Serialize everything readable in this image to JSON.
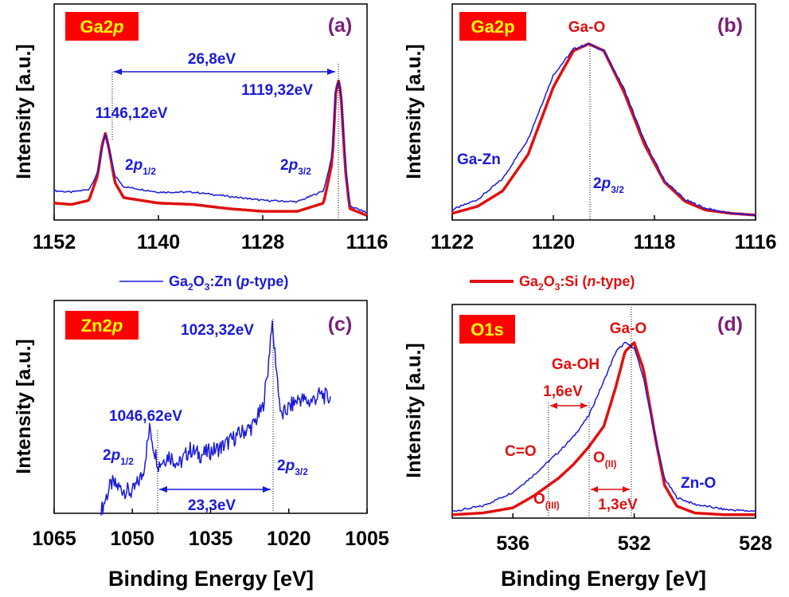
{
  "colors": {
    "p_type": "#1a1adb",
    "n_type": "#e01010",
    "badge_bg": "#ff0000",
    "badge_text": "#ffff00",
    "panel_letter": "#7a1f7a"
  },
  "legend": {
    "p_type": {
      "pre": "Ga",
      "s1": "2",
      "mid": "O",
      "s2": "3",
      "post": ":Zn (",
      "italic": "p",
      "end": "-type)"
    },
    "n_type": {
      "pre": "Ga",
      "s1": "2",
      "mid": "O",
      "s2": "3",
      "post": ":Si (",
      "italic": "n",
      "end": "-type)"
    }
  },
  "chart_data": [
    {
      "panel": "(a)",
      "type": "line",
      "badge": {
        "main": "Ga2",
        "italic": "p"
      },
      "xlabel": "",
      "ylabel": "Intensity [a.u.]",
      "xlim": [
        1152,
        1116
      ],
      "x_ticks": [
        "1152",
        "1140",
        "1128",
        "1116"
      ],
      "annotations": {
        "peak1": "1146,12eV",
        "peak2": "1119,32eV",
        "split": "26,8eV",
        "label1": {
          "main": "2",
          "italic": "p",
          "sub": "1/2"
        },
        "label2": {
          "main": "2",
          "italic": "p",
          "sub": "3/2"
        }
      },
      "series": [
        {
          "name": "Ga2O3:Zn (p-type)",
          "x": [
            1152,
            1150,
            1148,
            1147,
            1146.5,
            1146.1,
            1145.7,
            1145,
            1144,
            1140,
            1136,
            1132,
            1128,
            1124,
            1121,
            1120,
            1119.6,
            1119.3,
            1119,
            1118.5,
            1118,
            1116
          ],
          "y": [
            0.19,
            0.18,
            0.2,
            0.32,
            0.5,
            0.6,
            0.5,
            0.3,
            0.22,
            0.18,
            0.18,
            0.15,
            0.12,
            0.11,
            0.19,
            0.45,
            0.92,
            0.99,
            0.92,
            0.4,
            0.08,
            0.03
          ]
        },
        {
          "name": "Ga2O3:Si (n-type)",
          "x": [
            1152,
            1150,
            1148,
            1147,
            1146.5,
            1146.1,
            1145.7,
            1145,
            1144,
            1140,
            1136,
            1132,
            1128,
            1124,
            1121,
            1120,
            1119.6,
            1119.3,
            1119,
            1118.5,
            1118,
            1116
          ],
          "y": [
            0.1,
            0.09,
            0.12,
            0.3,
            0.52,
            0.61,
            0.5,
            0.25,
            0.14,
            0.1,
            0.09,
            0.06,
            0.04,
            0.04,
            0.1,
            0.4,
            0.9,
            1.0,
            0.9,
            0.35,
            0.06,
            0.01
          ]
        }
      ]
    },
    {
      "panel": "(b)",
      "type": "line",
      "badge": {
        "main": "Ga2p",
        "italic": ""
      },
      "xlabel": "",
      "ylabel": "Intensity [a.u.]",
      "xlim": [
        1122,
        1116
      ],
      "x_ticks": [
        "1122",
        "1120",
        "1118",
        "1116"
      ],
      "annotations": {
        "peak": "Ga-O",
        "shoulder": "Ga-Zn",
        "label": {
          "main": "2",
          "italic": "p",
          "sub": "3/2"
        }
      },
      "series": [
        {
          "name": "Ga2O3:Zn (p-type)",
          "x": [
            1122,
            1121.5,
            1121,
            1120.5,
            1120,
            1119.6,
            1119.3,
            1119,
            1118.6,
            1118.2,
            1117.8,
            1117.4,
            1117,
            1116.5,
            1116
          ],
          "y": [
            0.04,
            0.1,
            0.22,
            0.45,
            0.82,
            0.97,
            1.0,
            0.96,
            0.74,
            0.44,
            0.21,
            0.1,
            0.05,
            0.02,
            0.01
          ]
        },
        {
          "name": "Ga2O3:Si (n-type)",
          "x": [
            1122,
            1121.5,
            1121,
            1120.5,
            1120,
            1119.6,
            1119.3,
            1119,
            1118.6,
            1118.2,
            1117.8,
            1117.4,
            1117,
            1116.5,
            1116
          ],
          "y": [
            0.02,
            0.06,
            0.15,
            0.36,
            0.75,
            0.96,
            1.0,
            0.96,
            0.72,
            0.42,
            0.2,
            0.09,
            0.04,
            0.02,
            0.01
          ]
        }
      ]
    },
    {
      "panel": "(c)",
      "type": "line",
      "badge": {
        "main": "Zn2",
        "italic": "p"
      },
      "xlabel": "Binding Energy [eV]",
      "ylabel": "Intensity [a.u.]",
      "xlim": [
        1065,
        1005
      ],
      "x_ticks": [
        "1065",
        "1050",
        "1035",
        "1020",
        "1005"
      ],
      "annotations": {
        "peak1": "1046,62eV",
        "peak2": "1023,32eV",
        "split": "23,3eV",
        "label1": {
          "main": "2",
          "italic": "p",
          "sub": "1/2"
        },
        "label2": {
          "main": "2",
          "italic": "p",
          "sub": "3/2"
        }
      },
      "series": [
        {
          "name": "Ga2O3:Zn (p-type)",
          "x": [
            1056,
            1055,
            1054,
            1052,
            1050,
            1048,
            1047,
            1046.6,
            1046,
            1045,
            1043,
            1041,
            1039,
            1037,
            1035,
            1033,
            1031,
            1029,
            1027,
            1025,
            1024,
            1023.3,
            1022.5,
            1021.5,
            1020,
            1018,
            1016,
            1014,
            1012
          ],
          "y": [
            0.0,
            0.08,
            0.15,
            0.12,
            0.1,
            0.2,
            0.38,
            0.45,
            0.35,
            0.25,
            0.3,
            0.25,
            0.33,
            0.3,
            0.32,
            0.34,
            0.38,
            0.42,
            0.45,
            0.55,
            0.75,
            1.0,
            0.8,
            0.5,
            0.55,
            0.6,
            0.58,
            0.62,
            0.6
          ]
        }
      ]
    },
    {
      "panel": "(d)",
      "type": "line",
      "badge": {
        "main": "O1s",
        "italic": ""
      },
      "xlabel": "Binding Energy [eV]",
      "ylabel": "Intensity [a.u.]",
      "xlim": [
        538,
        528
      ],
      "x_ticks": [
        "536",
        "532",
        "528"
      ],
      "annotations": {
        "ga_o": "Ga-O",
        "ga_oh": "Ga-OH",
        "shift1": "1,6eV",
        "co": "C=O",
        "oii": {
          "main": "O",
          "sub": "(II)"
        },
        "oiii": {
          "main": "O",
          "sub": "(III)"
        },
        "shift2": "1,3eV",
        "zno": "Zn-O"
      },
      "series": [
        {
          "name": "Ga2O3:Zn (p-type)",
          "x": [
            538,
            537,
            536,
            535.3,
            534.5,
            534,
            533.5,
            533,
            532.6,
            532.3,
            532,
            531.7,
            531.3,
            531,
            530.6,
            530,
            529,
            528
          ],
          "y": [
            0.03,
            0.06,
            0.14,
            0.24,
            0.37,
            0.46,
            0.58,
            0.78,
            0.95,
            1.0,
            0.97,
            0.8,
            0.45,
            0.22,
            0.11,
            0.07,
            0.04,
            0.03
          ]
        },
        {
          "name": "Ga2O3:Si (n-type)",
          "x": [
            538,
            537,
            536,
            535.3,
            534.5,
            534,
            533.5,
            533,
            532.6,
            532.3,
            532,
            531.7,
            531.3,
            531,
            530.6,
            530,
            529,
            528
          ],
          "y": [
            0.01,
            0.02,
            0.05,
            0.12,
            0.22,
            0.3,
            0.4,
            0.52,
            0.75,
            0.95,
            1.0,
            0.85,
            0.45,
            0.18,
            0.06,
            0.02,
            0.01,
            0.01
          ]
        }
      ]
    }
  ]
}
